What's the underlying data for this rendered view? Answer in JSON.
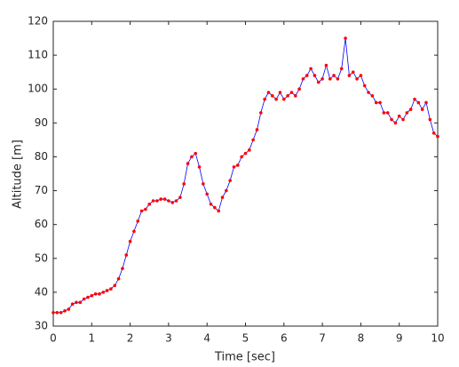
{
  "chart_data": {
    "type": "line",
    "x_label": "Time [sec]",
    "y_label": "Altitude [m]",
    "x": [
      0,
      0.1,
      0.2,
      0.3,
      0.4,
      0.5,
      0.6,
      0.7,
      0.8,
      0.9,
      1,
      1.1,
      1.2,
      1.3,
      1.4,
      1.5,
      1.6,
      1.7,
      1.8,
      1.9,
      2,
      2.1,
      2.2,
      2.3,
      2.4,
      2.5,
      2.6,
      2.7,
      2.8,
      2.9,
      3,
      3.1,
      3.2,
      3.3,
      3.4,
      3.5,
      3.6,
      3.7,
      3.8,
      3.9,
      4,
      4.1,
      4.2,
      4.3,
      4.4,
      4.5,
      4.6,
      4.7,
      4.8,
      4.9,
      5,
      5.1,
      5.2,
      5.3,
      5.4,
      5.5,
      5.6,
      5.7,
      5.8,
      5.9,
      6,
      6.1,
      6.2,
      6.3,
      6.4,
      6.5,
      6.6,
      6.7,
      6.8,
      6.9,
      7,
      7.1,
      7.2,
      7.3,
      7.4,
      7.5,
      7.6,
      7.7,
      7.8,
      7.9,
      8,
      8.1,
      8.2,
      8.3,
      8.4,
      8.5,
      8.6,
      8.7,
      8.8,
      8.9,
      9,
      9.1,
      9.2,
      9.3,
      9.4,
      9.5,
      9.6,
      9.7,
      9.8,
      9.9,
      10
    ],
    "series": [
      {
        "color": "#0000ff",
        "marker_color": "#ff0000",
        "values": [
          34,
          34,
          34,
          34.5,
          35,
          36.5,
          37,
          37,
          38,
          38.5,
          39,
          39.5,
          39.5,
          40,
          40.5,
          41,
          42,
          44,
          47,
          51,
          55,
          58,
          61,
          64,
          64.5,
          66,
          67,
          67,
          67.5,
          67.5,
          67,
          66.5,
          67,
          68,
          72,
          78,
          80,
          81,
          77,
          72,
          69,
          66,
          65,
          64,
          68,
          70,
          73,
          77,
          77.5,
          80,
          81,
          82,
          85,
          88,
          93,
          97,
          99,
          98,
          97,
          99,
          97,
          98,
          99,
          98,
          100,
          103,
          104,
          106,
          104,
          102,
          103,
          107,
          103,
          104,
          103,
          106,
          115,
          104,
          105,
          103,
          104,
          101,
          99,
          98,
          96,
          96,
          93,
          93,
          91,
          90,
          92,
          91,
          93,
          94,
          97,
          96,
          94,
          96,
          91,
          87,
          86
        ]
      }
    ],
    "xlim": [
      0,
      10
    ],
    "xticks": [
      0,
      1,
      2,
      3,
      4,
      5,
      6,
      7,
      8,
      9,
      10
    ],
    "ylim": [
      30,
      120
    ],
    "yticks": [
      30,
      40,
      50,
      60,
      70,
      80,
      90,
      100,
      110,
      120
    ],
    "grid": false
  }
}
